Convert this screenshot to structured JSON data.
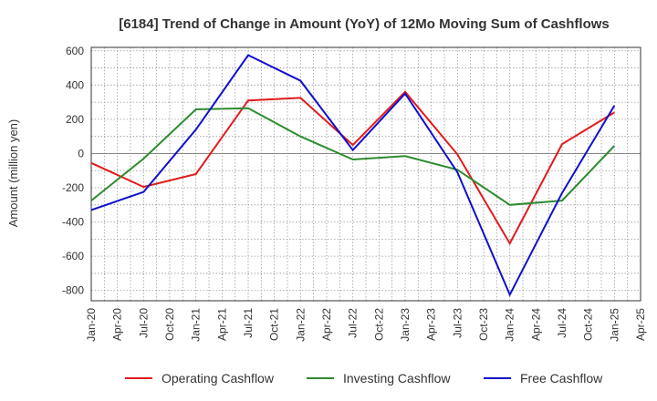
{
  "chart_data": {
    "type": "line",
    "title": "[6184]  Trend of Change in Amount (YoY) of 12Mo Moving Sum of Cashflows",
    "xlabel": "",
    "ylabel": "Amount (million yen)",
    "ylim": [
      -860,
      620
    ],
    "yticks": [
      600,
      400,
      200,
      0,
      -200,
      -400,
      -600,
      -800
    ],
    "categories": [
      "Jan-20",
      "Apr-20",
      "Jul-20",
      "Oct-20",
      "Jan-21",
      "Apr-21",
      "Jul-21",
      "Oct-21",
      "Jan-22",
      "Apr-22",
      "Jul-22",
      "Oct-22",
      "Jan-23",
      "Apr-23",
      "Jul-23",
      "Oct-23",
      "Jan-24",
      "Apr-24",
      "Jul-24",
      "Oct-24",
      "Jan-25",
      "Apr-25"
    ],
    "x": [
      0,
      2,
      4,
      6,
      8,
      10,
      12,
      14,
      16,
      18,
      20
    ],
    "series": [
      {
        "name": "Operating Cashflow",
        "color": "#e31a1c",
        "values": [
          -55,
          -195,
          -120,
          310,
          325,
          50,
          360,
          -5,
          -525,
          55,
          240
        ]
      },
      {
        "name": "Investing Cashflow",
        "color": "#2e8b2e",
        "values": [
          -275,
          -30,
          258,
          265,
          100,
          -35,
          -15,
          -95,
          -300,
          -275,
          45
        ]
      },
      {
        "name": "Free Cashflow",
        "color": "#1010cc",
        "values": [
          -330,
          -225,
          140,
          575,
          425,
          20,
          350,
          -110,
          -825,
          -230,
          280
        ]
      }
    ]
  }
}
